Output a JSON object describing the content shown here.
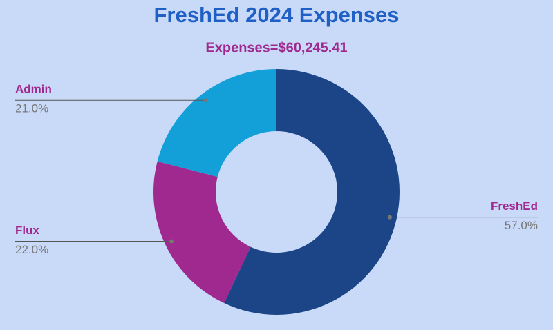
{
  "chart_data": {
    "type": "pie",
    "title": "FreshEd 2024 Expenses",
    "subtitle": "Expenses=$60,245.41",
    "categories": [
      "FreshEd",
      "Flux",
      "Admin"
    ],
    "values": [
      57.0,
      22.0,
      21.0
    ],
    "value_labels": [
      "57.0%",
      "22.0%",
      "21.0%"
    ],
    "colors": [
      "#1b4586",
      "#a0298f",
      "#13a0d8"
    ],
    "donut": true
  }
}
